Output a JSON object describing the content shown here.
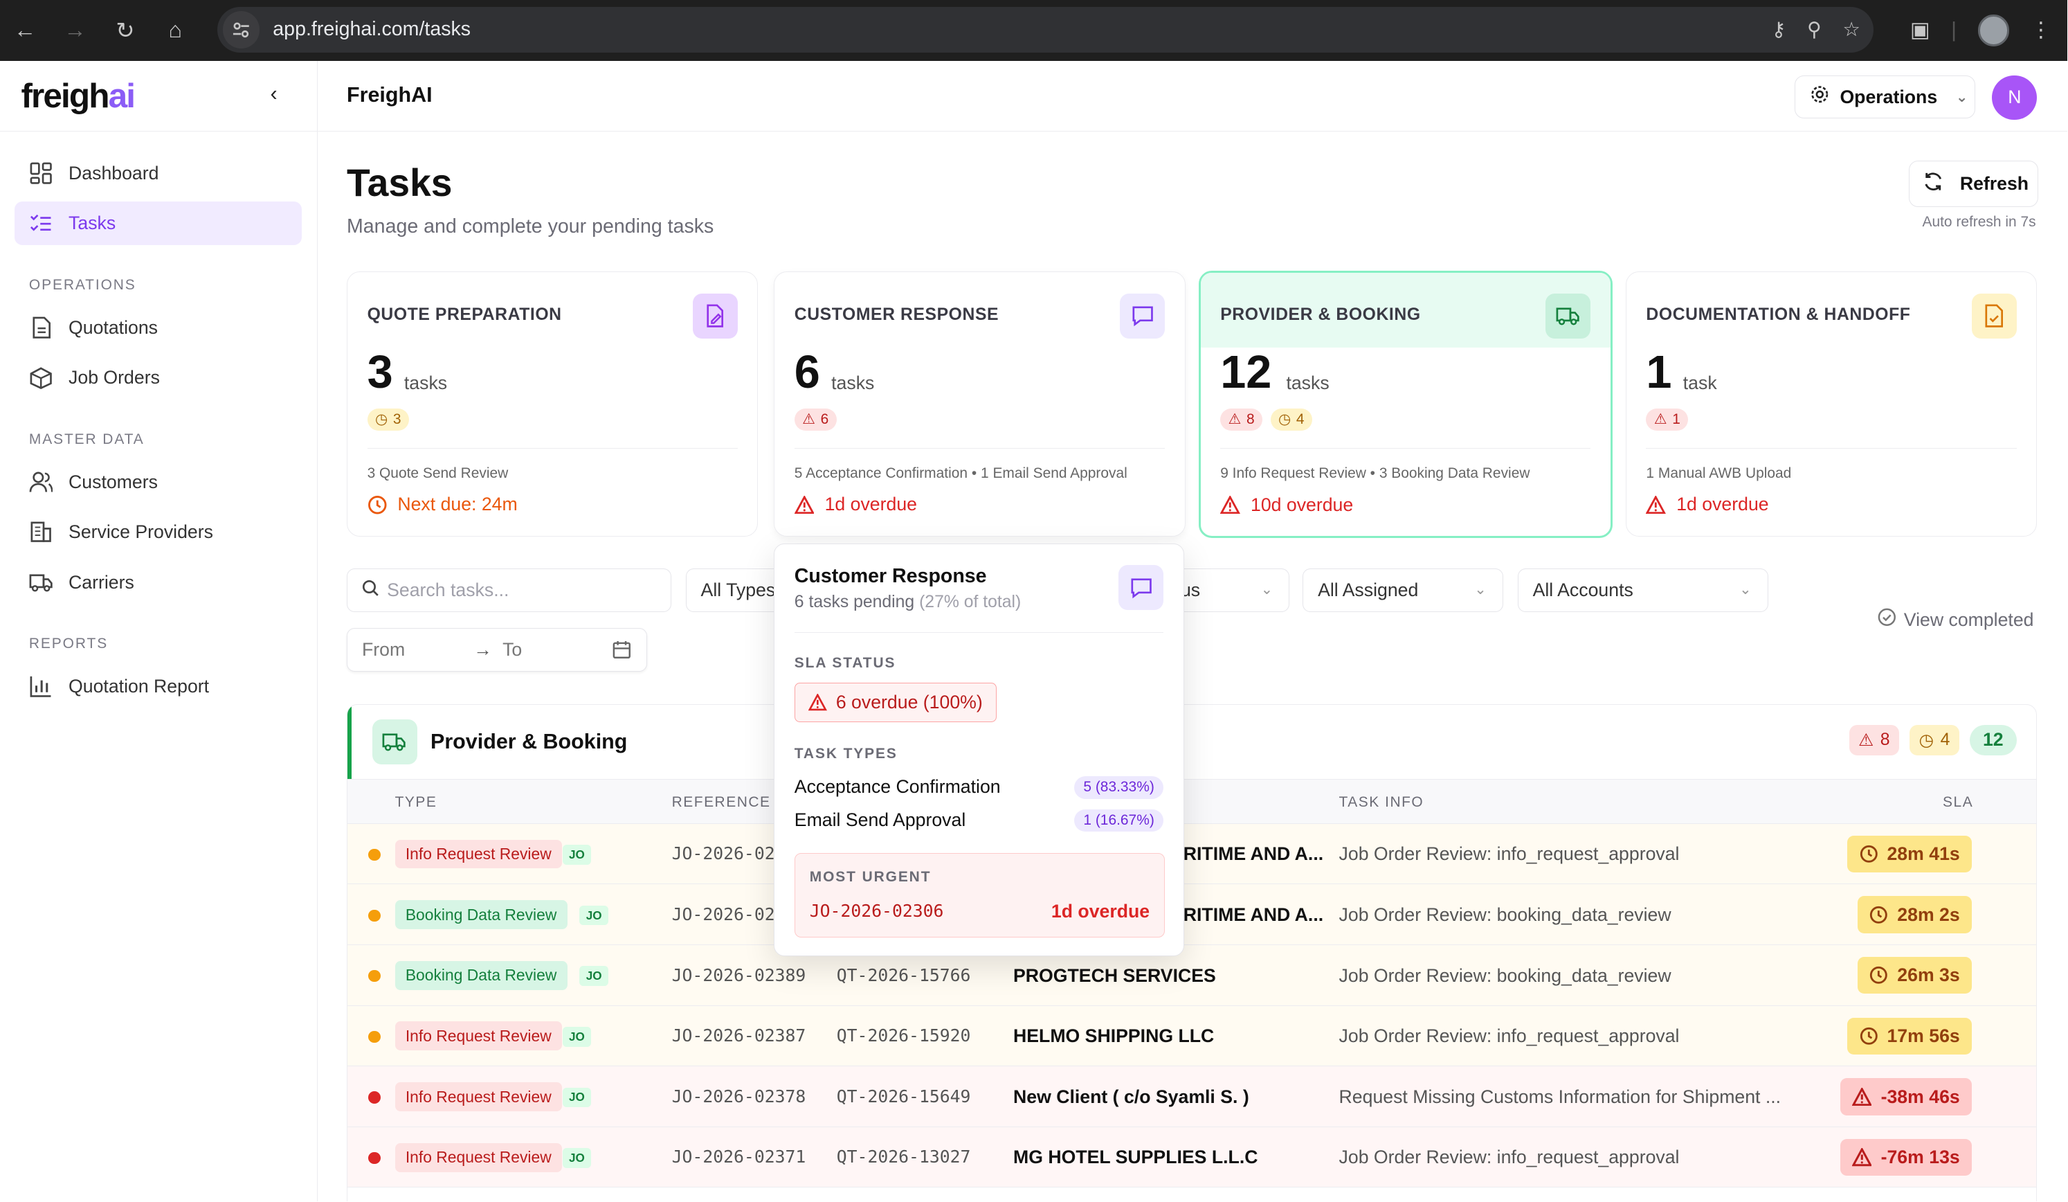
{
  "browser": {
    "url": "app.freighai.com/tasks"
  },
  "logo": {
    "main": "freigh",
    "accent": "ai"
  },
  "header": {
    "title": "FreighAI",
    "workspace": "Operations",
    "user_initial": "N"
  },
  "sidebar": {
    "items": [
      {
        "label": "Dashboard",
        "icon": "dashboard-icon"
      },
      {
        "label": "Tasks",
        "icon": "tasks-icon",
        "active": true
      }
    ],
    "sections": [
      {
        "title": "OPERATIONS",
        "items": [
          {
            "label": "Quotations",
            "icon": "document-icon"
          },
          {
            "label": "Job Orders",
            "icon": "box-icon"
          }
        ]
      },
      {
        "title": "MASTER DATA",
        "items": [
          {
            "label": "Customers",
            "icon": "users-icon"
          },
          {
            "label": "Service Providers",
            "icon": "building-icon"
          },
          {
            "label": "Carriers",
            "icon": "truck-icon"
          }
        ]
      },
      {
        "title": "REPORTS",
        "items": [
          {
            "label": "Quotation Report",
            "icon": "bar-chart-icon"
          }
        ]
      }
    ]
  },
  "page": {
    "title": "Tasks",
    "subtitle": "Manage and complete your pending tasks",
    "refresh_label": "Refresh",
    "auto_refresh": "Auto refresh in 7s"
  },
  "cards": [
    {
      "title": "QUOTE PREPARATION",
      "count": "3",
      "unit": "tasks",
      "badges": [
        {
          "kind": "amber",
          "icon": "clock-icon",
          "value": "3"
        }
      ],
      "detail": "3 Quote Send Review",
      "due": "Next due: 24m",
      "due_kind": "orange",
      "icon_color": "#e9d5ff"
    },
    {
      "title": "CUSTOMER RESPONSE",
      "count": "6",
      "unit": "tasks",
      "badges": [
        {
          "kind": "red",
          "icon": "warning-icon",
          "value": "6"
        }
      ],
      "detail": "5 Acceptance Confirmation • 1 Email Send Approval",
      "due": "1d overdue",
      "due_kind": "red",
      "icon_color": "#ede9fe"
    },
    {
      "title": "PROVIDER & BOOKING",
      "count": "12",
      "unit": "tasks",
      "badges": [
        {
          "kind": "red",
          "icon": "warning-icon",
          "value": "8"
        },
        {
          "kind": "amber",
          "icon": "clock-icon",
          "value": "4"
        }
      ],
      "detail": "9 Info Request Review • 3 Booking Data Review",
      "due": "10d overdue",
      "due_kind": "red",
      "icon_color": "#c7f0dc"
    },
    {
      "title": "DOCUMENTATION & HANDOFF",
      "count": "1",
      "unit": "task",
      "badges": [
        {
          "kind": "red",
          "icon": "warning-icon",
          "value": "1"
        }
      ],
      "detail": "1 Manual AWB Upload",
      "due": "1d overdue",
      "due_kind": "red",
      "icon_color": "#fef3c7"
    }
  ],
  "filters": {
    "search_placeholder": "Search tasks...",
    "type": "All Types",
    "status_partial": "us",
    "assigned": "All Assigned",
    "accounts": "All Accounts",
    "from": "From",
    "to": "To",
    "view_completed": "View completed"
  },
  "section": {
    "title": "Provider & Booking",
    "overdue": "8",
    "due_soon": "4",
    "total": "12",
    "columns": {
      "type": "TYPE",
      "reference": "REFERENCE",
      "task_info": "TASK INFO",
      "sla": "SLA"
    }
  },
  "rows": [
    {
      "status": "amber",
      "type": "Info Request Review",
      "type_kind": "info",
      "tag": "JO",
      "ref": "JO-2026-02",
      "quote": "",
      "customer": "RITIME AND A...",
      "info": "Job Order Review: info_request_approval",
      "sla": "28m 41s",
      "sla_kind": "amber"
    },
    {
      "status": "amber",
      "type": "Booking Data Review",
      "type_kind": "book",
      "tag": "JO",
      "ref": "JO-2026-02",
      "quote": "",
      "customer": "RITIME AND A...",
      "info": "Job Order Review: booking_data_review",
      "sla": "28m 2s",
      "sla_kind": "amber"
    },
    {
      "status": "amber",
      "type": "Booking Data Review",
      "type_kind": "book",
      "tag": "JO",
      "ref": "JO-2026-02389",
      "quote": "QT-2026-15766",
      "customer": "PROGTECH SERVICES",
      "info": "Job Order Review: booking_data_review",
      "sla": "26m 3s",
      "sla_kind": "amber"
    },
    {
      "status": "amber",
      "type": "Info Request Review",
      "type_kind": "info",
      "tag": "JO",
      "ref": "JO-2026-02387",
      "quote": "QT-2026-15920",
      "customer": "HELMO SHIPPING LLC",
      "info": "Job Order Review: info_request_approval",
      "sla": "17m 56s",
      "sla_kind": "amber"
    },
    {
      "status": "red",
      "type": "Info Request Review",
      "type_kind": "info",
      "tag": "JO",
      "ref": "JO-2026-02378",
      "quote": "QT-2026-15649",
      "customer": "New Client ( c/o Syamli S. )",
      "info": "Request Missing Customs Information for Shipment ...",
      "sla": "-38m 46s",
      "sla_kind": "red"
    },
    {
      "status": "red",
      "type": "Info Request Review",
      "type_kind": "info",
      "tag": "JO",
      "ref": "JO-2026-02371",
      "quote": "QT-2026-13027",
      "customer": "MG HOTEL SUPPLIES L.L.C",
      "info": "Job Order Review: info_request_approval",
      "sla": "-76m 13s",
      "sla_kind": "red"
    }
  ],
  "popover": {
    "title": "Customer Response",
    "pending": "6 tasks pending",
    "share": "(27% of total)",
    "sla_heading": "SLA STATUS",
    "sla_value": "6 overdue (100%)",
    "types_heading": "TASK TYPES",
    "types": [
      {
        "label": "Acceptance Confirmation",
        "pct": "5 (83.33%)"
      },
      {
        "label": "Email Send Approval",
        "pct": "1 (16.67%)"
      }
    ],
    "urgent_heading": "MOST URGENT",
    "urgent_ref": "JO-2026-02306",
    "urgent_due": "1d overdue"
  },
  "colors": {
    "accent": "#7c3aed",
    "success": "#16a34a",
    "danger": "#dc2626",
    "warning": "#d97706"
  }
}
